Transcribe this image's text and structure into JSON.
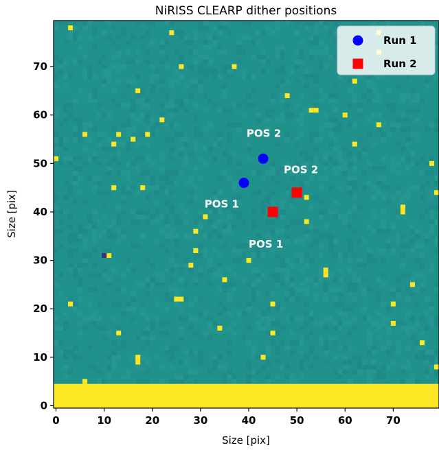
{
  "chart_data": {
    "type": "scatter",
    "title": "NiRISS CLEARP dither positions",
    "xlabel": "Size [pix]",
    "ylabel": "Size [pix]",
    "xlim": [
      -0.5,
      79.5
    ],
    "ylim": [
      -0.5,
      79.5
    ],
    "x_ticks": [
      "0",
      "10",
      "20",
      "30",
      "40",
      "50",
      "60",
      "70"
    ],
    "y_ticks": [
      "0",
      "10",
      "20",
      "30",
      "40",
      "50",
      "60",
      "70"
    ],
    "grid": false,
    "legend_position": "top-right",
    "series": [
      {
        "name": "Run 1",
        "marker": "circle",
        "color": "#0000ff",
        "points": [
          {
            "x": 39,
            "y": 46,
            "label": "POS 1"
          },
          {
            "x": 43,
            "y": 51,
            "label": "POS 2"
          }
        ]
      },
      {
        "name": "Run 2",
        "marker": "square",
        "color": "#ff0000",
        "points": [
          {
            "x": 45,
            "y": 40,
            "label": "POS 1"
          },
          {
            "x": 50,
            "y": 44,
            "label": "POS 2"
          }
        ]
      }
    ],
    "background_image": {
      "colormap": "viridis",
      "base_color": "#21918c",
      "hot_color": "#fde725",
      "cold_color": "#3b2f80",
      "saturated_band_rows": [
        0,
        4
      ],
      "hot_pixels": [
        [
          3,
          78
        ],
        [
          24,
          77
        ],
        [
          67,
          77
        ],
        [
          67,
          73
        ],
        [
          26,
          70
        ],
        [
          37,
          70
        ],
        [
          62,
          67
        ],
        [
          17,
          65
        ],
        [
          48,
          64
        ],
        [
          53,
          61
        ],
        [
          54,
          61
        ],
        [
          60,
          60
        ],
        [
          22,
          59
        ],
        [
          67,
          58
        ],
        [
          6,
          56
        ],
        [
          13,
          56
        ],
        [
          19,
          56
        ],
        [
          16,
          55
        ],
        [
          12,
          54
        ],
        [
          62,
          54
        ],
        [
          0,
          51
        ],
        [
          78,
          50
        ],
        [
          12,
          45
        ],
        [
          18,
          45
        ],
        [
          79,
          44
        ],
        [
          52,
          43
        ],
        [
          72,
          41
        ],
        [
          72,
          40
        ],
        [
          31,
          39
        ],
        [
          52,
          38
        ],
        [
          29,
          36
        ],
        [
          29,
          32
        ],
        [
          11,
          31
        ],
        [
          28,
          29
        ],
        [
          40,
          30
        ],
        [
          56,
          28
        ],
        [
          56,
          27
        ],
        [
          35,
          26
        ],
        [
          74,
          25
        ],
        [
          25,
          22
        ],
        [
          26,
          22
        ],
        [
          3,
          21
        ],
        [
          45,
          21
        ],
        [
          70,
          21
        ],
        [
          70,
          17
        ],
        [
          34,
          16
        ],
        [
          13,
          15
        ],
        [
          45,
          15
        ],
        [
          76,
          13
        ],
        [
          17,
          10
        ],
        [
          17,
          9
        ],
        [
          43,
          10
        ],
        [
          79,
          8
        ],
        [
          6,
          5
        ]
      ],
      "cold_pixels": [
        [
          10,
          31
        ]
      ]
    }
  }
}
